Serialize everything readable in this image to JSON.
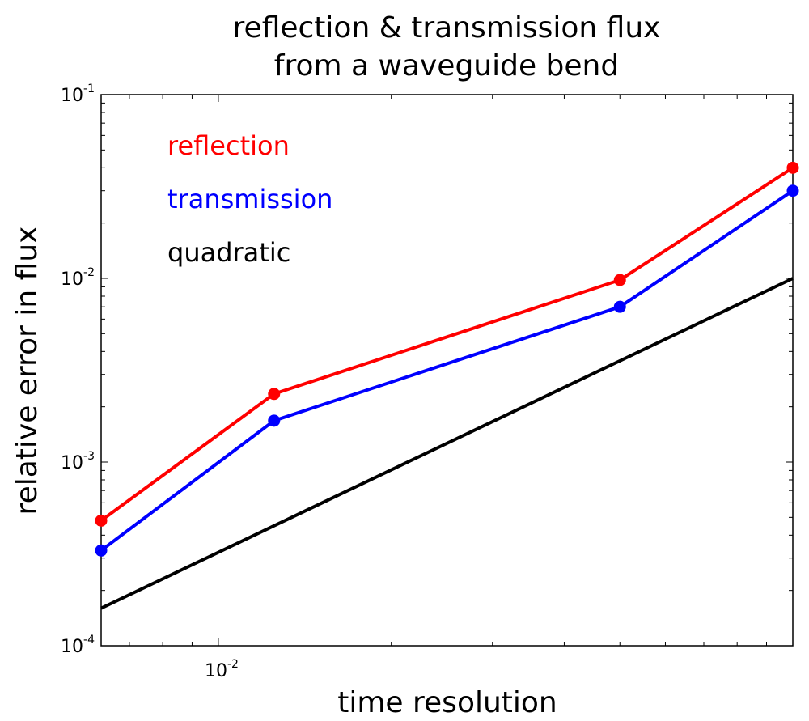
{
  "chart_data": {
    "type": "line",
    "title": [
      "reflection & transmission flux",
      "from a waveguide bend"
    ],
    "xlabel": "time resolution",
    "ylabel": "relative error in flux",
    "xscale": "log",
    "yscale": "log",
    "xlim": [
      0.00625,
      0.1
    ],
    "ylim": [
      0.0001,
      0.1
    ],
    "grid": false,
    "legend_position": "top-left",
    "x_ticks": [
      {
        "base": "10",
        "exp": "-2",
        "value": 0.01
      }
    ],
    "y_ticks": [
      {
        "base": "10",
        "exp": "-4",
        "value": 0.0001
      },
      {
        "base": "10",
        "exp": "-3",
        "value": 0.001
      },
      {
        "base": "10",
        "exp": "-2",
        "value": 0.01
      },
      {
        "base": "10",
        "exp": "-1",
        "value": 0.1
      }
    ],
    "series": [
      {
        "name": "reflection",
        "color": "#ff0000",
        "markers": true,
        "x": [
          0.00625,
          0.0125,
          0.05,
          0.1
        ],
        "y": [
          0.00048,
          0.00235,
          0.0098,
          0.04
        ]
      },
      {
        "name": "transmission",
        "color": "#0000ff",
        "markers": true,
        "x": [
          0.00625,
          0.0125,
          0.05,
          0.1
        ],
        "y": [
          0.00033,
          0.00168,
          0.007,
          0.03
        ]
      },
      {
        "name": "quadratic",
        "color": "#000000",
        "markers": false,
        "x": [
          0.00625,
          0.1
        ],
        "y": [
          0.00016,
          0.01
        ]
      }
    ]
  }
}
